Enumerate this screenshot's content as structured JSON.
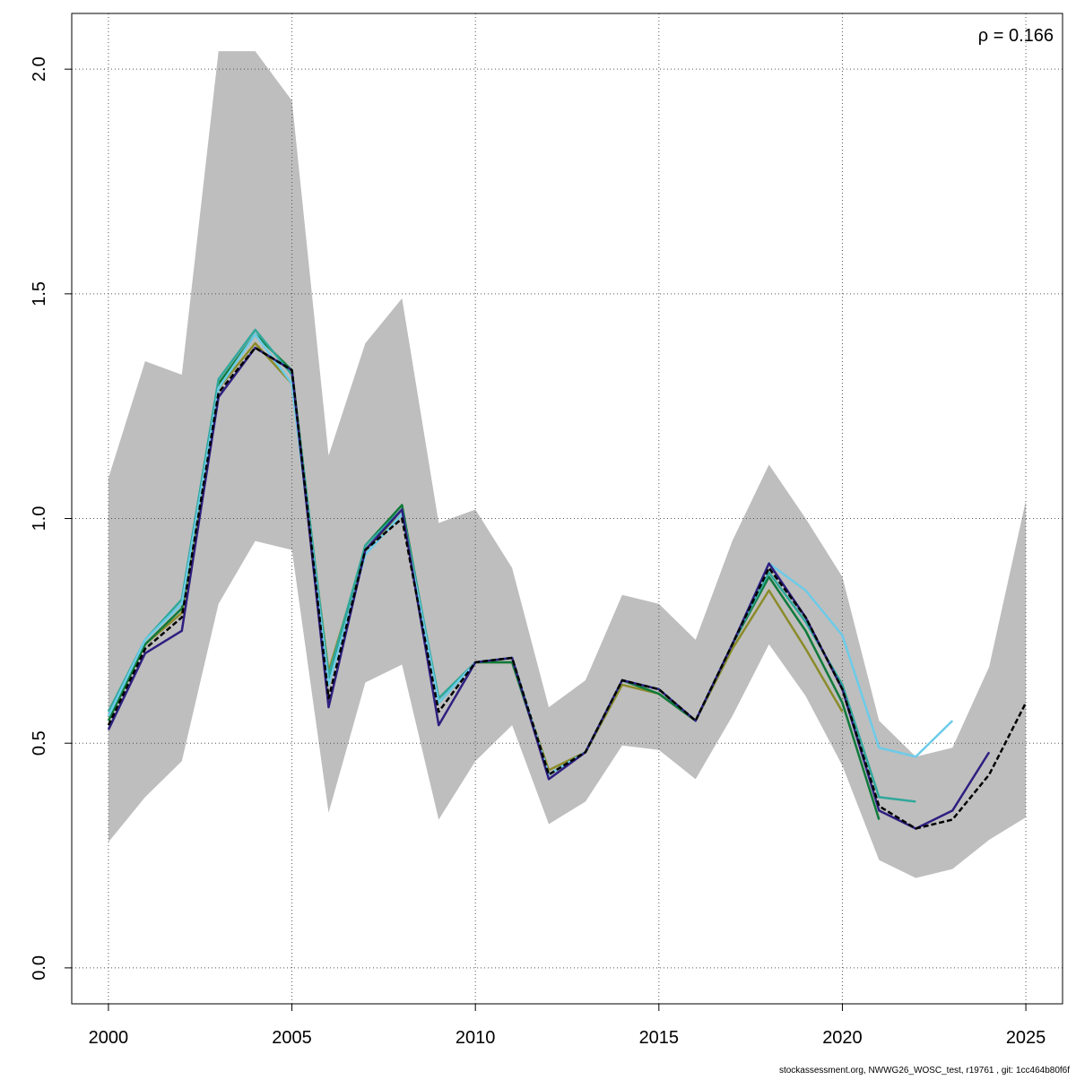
{
  "chart_data": {
    "type": "line",
    "annotation": "ρ = 0.166",
    "footer": "stockassessment.org, NWWG26_WOSC_test, r19761 , git: 1cc464b80f6f",
    "x": [
      2000,
      2001,
      2002,
      2003,
      2004,
      2005,
      2006,
      2007,
      2008,
      2009,
      2010,
      2011,
      2012,
      2013,
      2014,
      2015,
      2016,
      2017,
      2018,
      2019,
      2020,
      2021,
      2022,
      2023,
      2024,
      2025
    ],
    "band": {
      "color": "#bebebe",
      "upper": [
        1.09,
        1.35,
        1.32,
        2.04,
        2.04,
        1.93,
        1.14,
        1.39,
        1.49,
        0.99,
        1.02,
        0.89,
        0.58,
        0.64,
        0.83,
        0.81,
        0.73,
        0.95,
        1.12,
        1.0,
        0.87,
        0.55,
        0.47,
        0.49,
        0.67,
        1.04
      ],
      "lower": [
        0.28,
        0.38,
        0.46,
        0.81,
        0.95,
        0.93,
        0.345,
        0.635,
        0.675,
        0.33,
        0.46,
        0.54,
        0.32,
        0.37,
        0.495,
        0.485,
        0.42,
        0.56,
        0.72,
        0.605,
        0.45,
        0.24,
        0.2,
        0.22,
        0.285,
        0.335
      ]
    },
    "series": [
      {
        "color": "#8b8b2a",
        "values": [
          0.55,
          0.72,
          0.79,
          1.29,
          1.39,
          1.3,
          0.66,
          0.93,
          1.01,
          0.6,
          0.68,
          0.68,
          0.44,
          0.48,
          0.63,
          0.61,
          0.55,
          0.71,
          0.84,
          0.71,
          0.57,
          null,
          null,
          null,
          null,
          null
        ]
      },
      {
        "color": "#0f7a3a",
        "values": [
          0.55,
          0.72,
          0.8,
          1.3,
          1.41,
          1.33,
          0.64,
          0.94,
          1.03,
          0.59,
          0.68,
          0.68,
          0.43,
          0.48,
          0.64,
          0.61,
          0.55,
          0.72,
          0.87,
          0.75,
          0.59,
          0.33,
          null,
          null,
          null,
          null
        ]
      },
      {
        "color": "#30a89b",
        "values": [
          0.57,
          0.73,
          0.82,
          1.31,
          1.42,
          1.32,
          0.65,
          0.94,
          1.02,
          0.6,
          0.68,
          0.69,
          0.43,
          0.48,
          0.64,
          0.62,
          0.55,
          0.72,
          0.88,
          0.77,
          0.63,
          0.38,
          0.37,
          null,
          null,
          null
        ]
      },
      {
        "color": "#6ccbe8",
        "values": [
          0.56,
          0.73,
          0.81,
          1.29,
          1.41,
          1.3,
          0.63,
          0.92,
          1.01,
          0.59,
          0.68,
          0.69,
          0.43,
          0.48,
          0.64,
          0.62,
          0.55,
          0.72,
          0.9,
          0.84,
          0.74,
          0.49,
          0.47,
          0.55,
          null,
          null
        ]
      },
      {
        "color": "#2e1e80",
        "values": [
          0.53,
          0.7,
          0.75,
          1.27,
          1.38,
          1.33,
          0.58,
          0.93,
          1.02,
          0.54,
          0.68,
          0.69,
          0.42,
          0.48,
          0.64,
          0.62,
          0.55,
          0.72,
          0.9,
          0.78,
          0.62,
          0.35,
          0.31,
          0.35,
          0.48,
          null
        ]
      },
      {
        "color": "#000000",
        "dashed": true,
        "values": [
          0.54,
          0.71,
          0.78,
          1.28,
          1.38,
          1.33,
          0.6,
          0.93,
          1.0,
          0.57,
          0.68,
          0.69,
          0.43,
          0.48,
          0.64,
          0.62,
          0.55,
          0.72,
          0.89,
          0.78,
          0.62,
          0.36,
          0.31,
          0.33,
          0.43,
          0.59
        ]
      }
    ],
    "xlim": [
      1999,
      2026
    ],
    "ylim": [
      -0.08,
      2.124
    ],
    "xticks": [
      2000,
      2005,
      2010,
      2015,
      2020,
      2025
    ],
    "yticks": [
      {
        "value": 0,
        "label": "0.0"
      },
      0.5,
      {
        "value": 1,
        "label": "1.0"
      },
      1.5,
      {
        "value": 2,
        "label": "2.0"
      }
    ],
    "grid": true
  }
}
